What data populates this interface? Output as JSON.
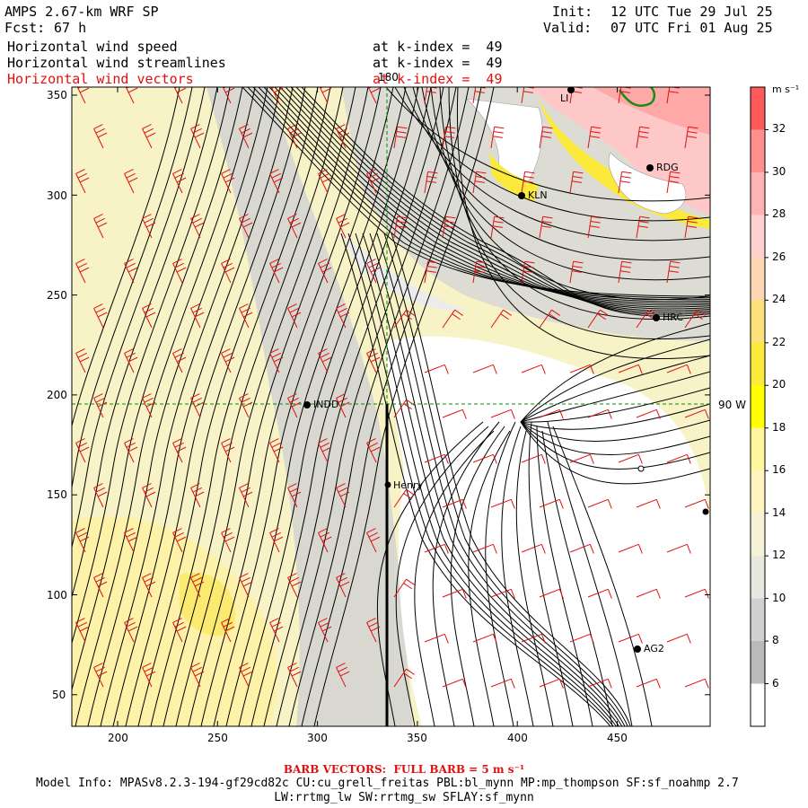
{
  "header": {
    "left_title": "AMPS 2.67-km WRF SP",
    "forecast_label": "Fcst:",
    "forecast_value": "67 h",
    "init_label": "Init:",
    "init_value": "12 UTC Tue 29 Jul 25",
    "valid_label": "Valid:",
    "valid_value": "07 UTC Fri 01 Aug 25",
    "fields": [
      {
        "name": "Horizontal wind speed",
        "level": "at k-index =  49"
      },
      {
        "name": "Horizontal wind streamlines",
        "level": "at k-index =  49"
      },
      {
        "name": "Horizontal wind vectors",
        "level": "at k-index =  49"
      }
    ]
  },
  "map": {
    "x_ticks": [
      "200",
      "250",
      "300",
      "350",
      "400",
      "450"
    ],
    "y_ticks": [
      "350",
      "300",
      "250",
      "200",
      "150",
      "100",
      "50"
    ],
    "meridian_label": "180",
    "parallel_label": "90 W",
    "stations": [
      {
        "id": "KLN"
      },
      {
        "id": "RDG"
      },
      {
        "id": "HRC"
      },
      {
        "id": "INDD"
      },
      {
        "id": "Henry"
      },
      {
        "id": "AG2"
      },
      {
        "id": "LI"
      }
    ]
  },
  "colorbar": {
    "unit": "m s⁻¹",
    "labels": [
      "32",
      "30",
      "28",
      "26",
      "24",
      "22",
      "20",
      "18",
      "16",
      "14",
      "12",
      "10",
      "8",
      "6"
    ],
    "colors": [
      "#ff5a5a",
      "#ff8f8f",
      "#ffb4b4",
      "#ffd0d0",
      "#fbd7b4",
      "#fce07a",
      "#fbea3c",
      "#ffff00",
      "#fff7a0",
      "#fff3c0",
      "#f5f2d8",
      "#e8e8e0",
      "#d0d0d0",
      "#bababa",
      "#ffffff"
    ]
  },
  "footer": {
    "barb_note": "BARB VECTORS:  FULL BARB = 5 m s⁻¹",
    "model_info": "Model Info: MPASv8.2.3-194-gf29cd82c CU:cu_grell_freitas PBL:bl_mynn MP:mp_thompson SF:sf_noahmp 2.7",
    "model_info_2": "LW:rrtmg_lw SW:rrtmg_sw SFLAY:sf_mynn"
  }
}
